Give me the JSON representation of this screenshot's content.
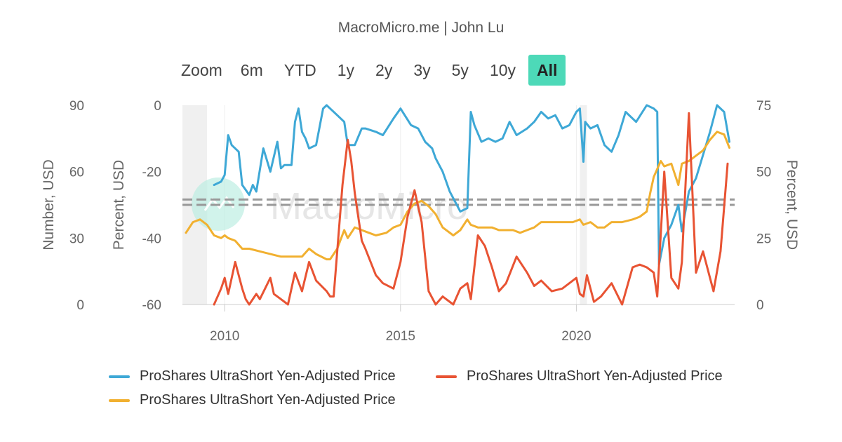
{
  "credit": "MacroMicro.me | John Lu",
  "watermark": "MacroMicro",
  "zoom": {
    "label": "Zoom",
    "buttons": [
      "6m",
      "YTD",
      "1y",
      "2y",
      "3y",
      "5y",
      "10y",
      "All"
    ],
    "active": "All"
  },
  "chart_data": {
    "type": "line",
    "x_range": [
      2008.8,
      2024.5
    ],
    "x_ticks": [
      2010,
      2015,
      2020
    ],
    "shaded_periods": [
      [
        2008.8,
        2009.5
      ],
      [
        2020.1,
        2020.3
      ]
    ],
    "reference_lines": [
      {
        "axis": "right",
        "values": [
          37.5,
          39.5
        ],
        "style": "dashed"
      }
    ],
    "axes": {
      "left1": {
        "label": "Number, USD",
        "ticks": [
          0,
          30,
          60,
          90
        ],
        "range": [
          0,
          90
        ]
      },
      "left2": {
        "label": "Percent, USD",
        "ticks": [
          -60,
          -40,
          -20,
          0
        ],
        "range": [
          -60,
          0
        ]
      },
      "right": {
        "label": "Percent, USD",
        "ticks": [
          0,
          25,
          50,
          75
        ],
        "range": [
          0,
          75
        ]
      }
    },
    "series": [
      {
        "name": "ProShares UltraShort Yen-Adjusted Price",
        "color": "#3ea8d6",
        "axis": "left2",
        "x": [
          2009.7,
          2009.9,
          2010.0,
          2010.1,
          2010.2,
          2010.4,
          2010.5,
          2010.7,
          2010.8,
          2010.9,
          2011.1,
          2011.3,
          2011.5,
          2011.6,
          2011.7,
          2011.9,
          2012.0,
          2012.1,
          2012.2,
          2012.3,
          2012.4,
          2012.6,
          2012.8,
          2012.9,
          2013.0,
          2013.2,
          2013.4,
          2013.5,
          2013.7,
          2013.9,
          2014.0,
          2014.3,
          2014.5,
          2014.8,
          2015.0,
          2015.3,
          2015.5,
          2015.7,
          2015.9,
          2016.0,
          2016.2,
          2016.4,
          2016.6,
          2016.7,
          2016.9,
          2017.0,
          2017.1,
          2017.3,
          2017.5,
          2017.7,
          2017.9,
          2018.1,
          2018.3,
          2018.6,
          2018.8,
          2019.0,
          2019.2,
          2019.4,
          2019.6,
          2019.8,
          2020.0,
          2020.1,
          2020.2,
          2020.25,
          2020.4,
          2020.6,
          2020.8,
          2021.0,
          2021.2,
          2021.4,
          2021.7,
          2022.0,
          2022.2,
          2022.3,
          2022.35,
          2022.5,
          2022.7,
          2022.9,
          2023.0,
          2023.2,
          2023.4,
          2023.6,
          2023.8,
          2024.0,
          2024.2,
          2024.35
        ],
        "y": [
          -24,
          -23,
          -21,
          -9,
          -12,
          -14,
          -24,
          -27,
          -24,
          -26,
          -13,
          -20,
          -11,
          -19,
          -18,
          -18,
          -5,
          -1,
          -8,
          -10,
          -13,
          -12,
          -1,
          0,
          -1,
          -3,
          -5,
          -12,
          -12,
          -7,
          -7,
          -8,
          -9,
          -4,
          -1,
          -6,
          -7,
          -11,
          -13,
          -16,
          -20,
          -26,
          -30,
          -32,
          -31,
          -2,
          -6,
          -11,
          -10,
          -11,
          -10,
          -5,
          -9,
          -7,
          -5,
          -2,
          -4,
          -3,
          -7,
          -6,
          -2,
          -1,
          -17,
          -5,
          -7,
          -6,
          -12,
          -14,
          -9,
          -2,
          -5,
          0,
          -1,
          -2,
          -48,
          -40,
          -36,
          -30,
          -38,
          -26,
          -22,
          -15,
          -8,
          0,
          -2,
          -11
        ]
      },
      {
        "name": "ProShares UltraShort Yen-Adjusted Price",
        "color": "#e85333",
        "axis": "right",
        "x": [
          2009.7,
          2009.9,
          2010.0,
          2010.1,
          2010.3,
          2010.5,
          2010.6,
          2010.7,
          2010.9,
          2011.0,
          2011.3,
          2011.4,
          2011.6,
          2011.8,
          2012.0,
          2012.2,
          2012.4,
          2012.6,
          2012.9,
          2013.0,
          2013.1,
          2013.2,
          2013.35,
          2013.5,
          2013.6,
          2013.7,
          2013.9,
          2014.0,
          2014.3,
          2014.5,
          2014.8,
          2015.0,
          2015.2,
          2015.4,
          2015.6,
          2015.8,
          2016.0,
          2016.2,
          2016.5,
          2016.7,
          2016.9,
          2017.0,
          2017.2,
          2017.4,
          2017.6,
          2017.8,
          2018.0,
          2018.3,
          2018.6,
          2018.8,
          2019.0,
          2019.3,
          2019.6,
          2019.8,
          2020.0,
          2020.1,
          2020.2,
          2020.3,
          2020.5,
          2020.7,
          2021.0,
          2021.3,
          2021.6,
          2021.8,
          2022.0,
          2022.2,
          2022.3,
          2022.5,
          2022.7,
          2022.9,
          2023.0,
          2023.2,
          2023.4,
          2023.6,
          2023.9,
          2024.1,
          2024.3
        ],
        "y": [
          0,
          6,
          10,
          4,
          16,
          6,
          2,
          0,
          4,
          2,
          10,
          4,
          2,
          0,
          12,
          5,
          16,
          9,
          5,
          3,
          3,
          20,
          45,
          62,
          54,
          42,
          24,
          21,
          11,
          8,
          6,
          16,
          33,
          43,
          31,
          5,
          0,
          3,
          0,
          6,
          8,
          2,
          26,
          22,
          14,
          5,
          8,
          18,
          12,
          7,
          9,
          5,
          6,
          8,
          10,
          4,
          3,
          11,
          1,
          3,
          8,
          0,
          14,
          15,
          14,
          12,
          3,
          50,
          10,
          6,
          16,
          72,
          12,
          20,
          5,
          20,
          53
        ]
      },
      {
        "name": "ProShares UltraShort Yen-Adjusted Price",
        "color": "#f1b030",
        "axis": "right",
        "x": [
          2008.9,
          2009.1,
          2009.3,
          2009.5,
          2009.7,
          2009.9,
          2010.0,
          2010.1,
          2010.3,
          2010.5,
          2010.7,
          2011.0,
          2011.3,
          2011.6,
          2011.9,
          2012.2,
          2012.4,
          2012.6,
          2012.9,
          2013.0,
          2013.2,
          2013.4,
          2013.5,
          2013.7,
          2013.9,
          2014.1,
          2014.3,
          2014.6,
          2014.8,
          2015.0,
          2015.2,
          2015.4,
          2015.6,
          2015.8,
          2016.0,
          2016.2,
          2016.5,
          2016.7,
          2016.9,
          2017.0,
          2017.2,
          2017.4,
          2017.6,
          2017.8,
          2018.0,
          2018.2,
          2018.4,
          2018.6,
          2018.8,
          2019.0,
          2019.3,
          2019.6,
          2019.9,
          2020.1,
          2020.2,
          2020.4,
          2020.6,
          2020.8,
          2021.0,
          2021.3,
          2021.6,
          2021.8,
          2022.0,
          2022.1,
          2022.2,
          2022.3,
          2022.4,
          2022.5,
          2022.7,
          2022.9,
          2023.0,
          2023.2,
          2023.4,
          2023.6,
          2023.8,
          2024.0,
          2024.2,
          2024.35
        ],
        "y": [
          27,
          31,
          32,
          30,
          26,
          25,
          26,
          25,
          24,
          21,
          21,
          20,
          19,
          18,
          18,
          18,
          21,
          19,
          17,
          17,
          21,
          28,
          25,
          29,
          28,
          27,
          26,
          27,
          29,
          30,
          35,
          38,
          39,
          37,
          34,
          29,
          26,
          28,
          32,
          30,
          29,
          29,
          29,
          28,
          28,
          28,
          27,
          28,
          29,
          31,
          31,
          31,
          31,
          32,
          30,
          31,
          29,
          29,
          31,
          31,
          32,
          33,
          35,
          42,
          48,
          51,
          54,
          52,
          53,
          45,
          53,
          54,
          56,
          58,
          62,
          65,
          64,
          59
        ]
      }
    ]
  },
  "legend": [
    {
      "label": "ProShares UltraShort Yen-Adjusted Price",
      "color": "#3ea8d6"
    },
    {
      "label": "ProShares UltraShort Yen-Adjusted Price",
      "color": "#e85333"
    },
    {
      "label": "ProShares UltraShort Yen-Adjusted Price",
      "color": "#f1b030"
    }
  ]
}
